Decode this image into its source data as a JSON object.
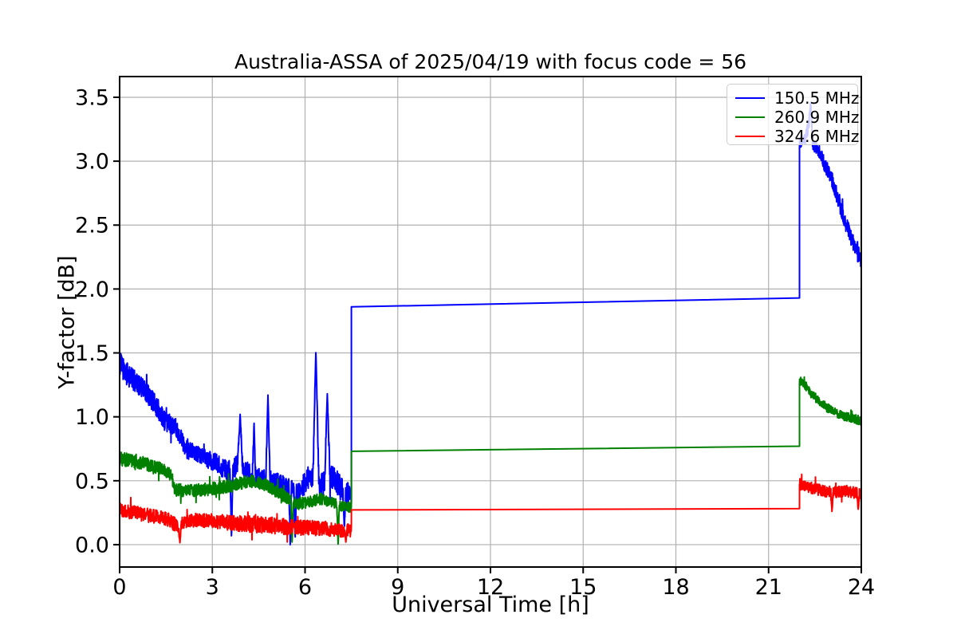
{
  "chart_data": {
    "type": "line",
    "title": "Australia-ASSA of 2025/04/19 with focus code = 56",
    "xlabel": "Universal Time [h]",
    "ylabel": "Y-factor [dB]",
    "x_range": [
      0,
      24
    ],
    "y_range": [
      -0.175,
      3.662
    ],
    "x_ticks": [
      0,
      3,
      6,
      9,
      12,
      15,
      18,
      21,
      24
    ],
    "y_ticks": [
      0.0,
      0.5,
      1.0,
      1.5,
      2.0,
      2.5,
      3.0,
      3.5
    ],
    "grid": true,
    "grid_color": "#b0b0b0",
    "spine_color": "#000000",
    "background_color": "#ffffff",
    "legend_position": "upper right",
    "legend_border_color": "#cccccc",
    "series": [
      {
        "name": "150.5 MHz",
        "color": "#0000ff",
        "segments": {
          "morning_noisy": {
            "anchors": [
              [
                0,
                1.42,
                0.09
              ],
              [
                0.25,
                1.33,
                0.09
              ],
              [
                0.55,
                1.27,
                0.08
              ],
              [
                0.9,
                1.18,
                0.08
              ],
              [
                1.15,
                1.1,
                0.08
              ],
              [
                1.45,
                0.97,
                0.08
              ],
              [
                1.8,
                0.93,
                0.07
              ],
              [
                2.1,
                0.78,
                0.07
              ],
              [
                2.45,
                0.72,
                0.06
              ],
              [
                2.9,
                0.66,
                0.07
              ],
              [
                3.2,
                0.63,
                0.08
              ],
              [
                3.5,
                0.57,
                0.08
              ],
              [
                3.8,
                0.62,
                0.08
              ],
              [
                4.1,
                0.57,
                0.08
              ],
              [
                4.5,
                0.52,
                0.08
              ],
              [
                5.0,
                0.49,
                0.08
              ],
              [
                5.4,
                0.45,
                0.08
              ],
              [
                5.8,
                0.41,
                0.08
              ],
              [
                6.1,
                0.52,
                0.09
              ],
              [
                6.55,
                0.46,
                0.1
              ],
              [
                6.9,
                0.53,
                0.1
              ],
              [
                7.15,
                0.44,
                0.1
              ],
              [
                7.35,
                0.4,
                0.1
              ],
              [
                7.5,
                0.37,
                0.08
              ]
            ],
            "spikes": [
              [
                3.62,
                0.05,
                0.05
              ],
              [
                3.9,
                1.02,
                0.08
              ],
              [
                4.35,
                0.95,
                0.05
              ],
              [
                4.8,
                1.17,
                0.07
              ],
              [
                5.52,
                0.0,
                0.04
              ],
              [
                5.68,
                0.04,
                0.04
              ],
              [
                6.35,
                1.52,
                0.1
              ],
              [
                6.72,
                1.18,
                0.09
              ],
              [
                7.27,
                0.13,
                0.05
              ]
            ]
          },
          "flat": [
            [
              7.5,
              1.86
            ],
            [
              22,
              1.93
            ]
          ],
          "evening_noisy": {
            "anchors": [
              [
                22,
                3.15,
                0.05
              ],
              [
                22.18,
                3.17,
                0.05
              ],
              [
                22.32,
                3.3,
                0.05
              ],
              [
                22.45,
                3.12,
                0.05
              ],
              [
                22.65,
                3.07,
                0.05
              ],
              [
                22.85,
                2.95,
                0.06
              ],
              [
                23.05,
                2.86,
                0.06
              ],
              [
                23.25,
                2.7,
                0.06
              ],
              [
                23.45,
                2.53,
                0.06
              ],
              [
                23.6,
                2.46,
                0.06
              ],
              [
                23.72,
                2.35,
                0.06
              ],
              [
                23.88,
                2.32,
                0.05
              ],
              [
                24,
                2.2,
                0.05
              ]
            ],
            "spikes": [
              [
                22.36,
                3.46,
                0.06
              ]
            ]
          }
        }
      },
      {
        "name": "260.9 MHz",
        "color": "#008000",
        "segments": {
          "morning_noisy": {
            "anchors": [
              [
                0,
                0.67,
                0.055
              ],
              [
                0.5,
                0.655,
                0.055
              ],
              [
                1.0,
                0.62,
                0.05
              ],
              [
                1.4,
                0.59,
                0.05
              ],
              [
                1.68,
                0.54,
                0.05
              ],
              [
                1.78,
                0.43,
                0.05
              ],
              [
                2.3,
                0.42,
                0.05
              ],
              [
                2.9,
                0.435,
                0.05
              ],
              [
                3.6,
                0.46,
                0.05
              ],
              [
                4.2,
                0.5,
                0.05
              ],
              [
                4.7,
                0.47,
                0.05
              ],
              [
                5.2,
                0.4,
                0.05
              ],
              [
                5.7,
                0.32,
                0.05
              ],
              [
                6.1,
                0.33,
                0.045
              ],
              [
                6.5,
                0.36,
                0.045
              ],
              [
                6.9,
                0.33,
                0.04
              ],
              [
                7.2,
                0.3,
                0.04
              ],
              [
                7.5,
                0.29,
                0.04
              ]
            ],
            "spikes": [
              [
                5.58,
                0.02,
                0.04
              ],
              [
                7.07,
                -0.01,
                0.04
              ]
            ]
          },
          "flat": [
            [
              7.5,
              0.73
            ],
            [
              22,
              0.77
            ]
          ],
          "evening_noisy": {
            "anchors": [
              [
                22,
                1.29,
                0.035
              ],
              [
                22.15,
                1.26,
                0.035
              ],
              [
                22.35,
                1.19,
                0.035
              ],
              [
                22.6,
                1.13,
                0.035
              ],
              [
                22.9,
                1.07,
                0.035
              ],
              [
                23.2,
                1.03,
                0.035
              ],
              [
                23.5,
                1.0,
                0.035
              ],
              [
                23.75,
                0.985,
                0.035
              ],
              [
                24,
                0.97,
                0.035
              ]
            ],
            "spikes": []
          }
        }
      },
      {
        "name": "324.6 MHz",
        "color": "#ff0000",
        "segments": {
          "morning_noisy": {
            "anchors": [
              [
                0,
                0.27,
                0.055
              ],
              [
                0.5,
                0.25,
                0.055
              ],
              [
                1.0,
                0.225,
                0.055
              ],
              [
                1.5,
                0.205,
                0.055
              ],
              [
                1.85,
                0.15,
                0.055
              ],
              [
                2.2,
                0.185,
                0.05
              ],
              [
                2.9,
                0.19,
                0.055
              ],
              [
                3.6,
                0.17,
                0.06
              ],
              [
                4.3,
                0.16,
                0.065
              ],
              [
                5.0,
                0.15,
                0.065
              ],
              [
                5.6,
                0.135,
                0.06
              ],
              [
                6.2,
                0.13,
                0.06
              ],
              [
                6.8,
                0.12,
                0.055
              ],
              [
                7.2,
                0.11,
                0.05
              ],
              [
                7.5,
                0.115,
                0.05
              ]
            ],
            "spikes": [
              [
                1.95,
                0.015,
                0.05
              ],
              [
                7.32,
                0.02,
                0.04
              ]
            ]
          },
          "flat": [
            [
              7.5,
              0.272
            ],
            [
              22,
              0.282
            ]
          ],
          "evening_noisy": {
            "anchors": [
              [
                22,
                0.475,
                0.045
              ],
              [
                22.3,
                0.45,
                0.045
              ],
              [
                22.6,
                0.43,
                0.045
              ],
              [
                22.9,
                0.415,
                0.045
              ],
              [
                23.2,
                0.41,
                0.045
              ],
              [
                23.5,
                0.42,
                0.045
              ],
              [
                23.8,
                0.405,
                0.045
              ],
              [
                24,
                0.4,
                0.045
              ]
            ],
            "spikes": [
              [
                23.05,
                0.26,
                0.04
              ],
              [
                23.9,
                0.27,
                0.04
              ]
            ]
          }
        }
      }
    ]
  }
}
